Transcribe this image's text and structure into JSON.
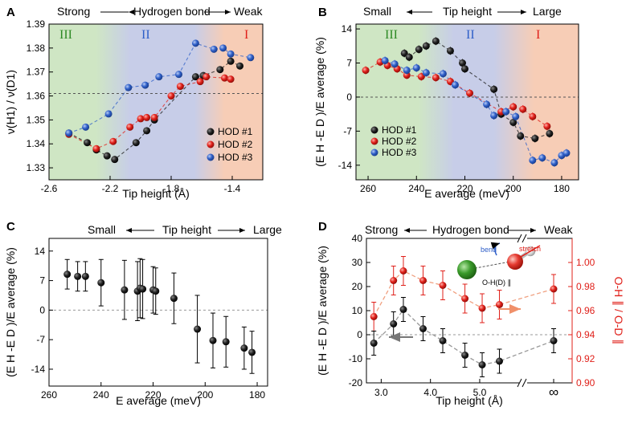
{
  "colors": {
    "black": "#1a1a1a",
    "red": "#e0201a",
    "blue": "#2f5fc8",
    "green_region": "#cfe6c4",
    "blue_region": "#c7cde8",
    "orange_region": "#f7cdb6",
    "right_axis": "#e0201a"
  },
  "chart_data": [
    {
      "panel": "A",
      "type": "scatter",
      "top_scale": {
        "left": "Strong",
        "middle": "Hydrogen bond",
        "right": "Weak"
      },
      "regions": [
        "III",
        "II",
        "I"
      ],
      "xlabel": "Tip height (Å)",
      "ylabel": "ν(H1) / ν(D1)",
      "xlim": [
        -2.6,
        -1.2
      ],
      "ylim": [
        1.325,
        1.39
      ],
      "xticks": [
        "-2.6",
        "-2.2",
        "-1.8",
        "-1.4"
      ],
      "xtick_values": [
        -2.6,
        -2.2,
        -1.8,
        -1.4
      ],
      "yticks": [
        "1.33",
        "1.34",
        "1.35",
        "1.36",
        "1.37",
        "1.38",
        "1.39"
      ],
      "ytick_values": [
        1.33,
        1.34,
        1.35,
        1.36,
        1.37,
        1.38,
        1.39
      ],
      "reference_line": 1.361,
      "legend": [
        "HOD #1",
        "HOD #2",
        "HOD #3"
      ],
      "series": [
        {
          "name": "HOD #1",
          "x": [
            -2.47,
            -2.35,
            -2.29,
            -2.22,
            -2.17,
            -2.03,
            -1.96,
            -1.91,
            -1.64,
            -1.59,
            -1.48,
            -1.41,
            -1.35
          ],
          "y": [
            1.3445,
            1.3405,
            1.3375,
            1.335,
            1.3335,
            1.3405,
            1.3455,
            1.35,
            1.368,
            1.3685,
            1.371,
            1.3745,
            1.3725
          ]
        },
        {
          "name": "HOD #2",
          "x": [
            -2.47,
            -2.29,
            -2.18,
            -2.07,
            -2.0,
            -1.96,
            -1.91,
            -1.8,
            -1.74,
            -1.61,
            -1.57,
            -1.45,
            -1.41
          ],
          "y": [
            1.344,
            1.338,
            1.341,
            1.347,
            1.3505,
            1.351,
            1.351,
            1.36,
            1.364,
            1.366,
            1.368,
            1.3675,
            1.367
          ]
        },
        {
          "name": "HOD #3",
          "x": [
            -2.47,
            -2.36,
            -2.21,
            -2.08,
            -1.97,
            -1.88,
            -1.75,
            -1.64,
            -1.52,
            -1.46,
            -1.41,
            -1.28
          ],
          "y": [
            1.3445,
            1.347,
            1.3525,
            1.3635,
            1.3645,
            1.368,
            1.369,
            1.382,
            1.3795,
            1.38,
            1.3775,
            1.376
          ]
        }
      ]
    },
    {
      "panel": "B",
      "type": "scatter",
      "top_scale": {
        "left": "Small",
        "middle": "Tip height",
        "right": "Large"
      },
      "regions": [
        "III",
        "II",
        "I"
      ],
      "xlabel": "E average (meV)",
      "ylabel": "(E H -E D )/E average (%)",
      "xlim": [
        265,
        173
      ],
      "ylim": [
        -17,
        15
      ],
      "xticks": [
        "260",
        "240",
        "220",
        "200",
        "180"
      ],
      "xtick_values": [
        260,
        240,
        220,
        200,
        180
      ],
      "yticks": [
        "14",
        "7",
        "0",
        "-7",
        "-14"
      ],
      "ytick_values": [
        14,
        7,
        0,
        -7,
        -14
      ],
      "reference_line": 0,
      "legend": [
        "HOD #1",
        "HOD #2",
        "HOD #3"
      ],
      "series": [
        {
          "name": "HOD #1",
          "x": [
            245,
            243,
            239,
            236,
            232,
            226,
            221,
            220,
            208,
            205,
            200,
            197,
            191,
            185
          ],
          "y": [
            9.0,
            8.2,
            9.8,
            10.5,
            11.5,
            9.5,
            7.0,
            5.8,
            1.6,
            -3.5,
            -5.2,
            -8.0,
            -8.5,
            -7.5
          ]
        },
        {
          "name": "HOD #2",
          "x": [
            261,
            255,
            252,
            248,
            244,
            238,
            232,
            226,
            218,
            205,
            200,
            196,
            192,
            186
          ],
          "y": [
            5.5,
            7.2,
            6.5,
            5.8,
            4.5,
            4.2,
            4.0,
            3.2,
            0.8,
            -3.0,
            -2.0,
            -2.5,
            -4.0,
            -6.0
          ]
        },
        {
          "name": "HOD #3",
          "x": [
            253,
            249,
            244,
            240,
            236,
            229,
            224,
            211,
            208,
            203,
            199,
            192,
            188,
            183,
            180,
            178
          ],
          "y": [
            7.5,
            6.8,
            5.5,
            6.0,
            5.0,
            4.8,
            2.5,
            -1.5,
            -3.8,
            -3.0,
            -4.0,
            -13.0,
            -12.5,
            -13.5,
            -12.0,
            -11.5
          ]
        }
      ]
    },
    {
      "panel": "C",
      "type": "scatter",
      "top_scale": {
        "left": "Small",
        "middle": "Tip height",
        "right": "Large"
      },
      "xlabel": "E average (meV)",
      "ylabel": "(E H -E D )/E average (%)",
      "xlim": [
        260,
        176
      ],
      "ylim": [
        -18,
        17
      ],
      "xticks": [
        "260",
        "240",
        "220",
        "200",
        "180"
      ],
      "xtick_values": [
        260,
        240,
        220,
        200,
        180
      ],
      "yticks": [
        "14",
        "7",
        "0",
        "-7",
        "-14"
      ],
      "ytick_values": [
        14,
        7,
        0,
        -7,
        -14
      ],
      "reference_line": 0,
      "series": [
        {
          "name": "",
          "x": [
            253,
            249,
            246,
            240,
            231,
            226,
            225,
            224,
            220,
            219,
            212,
            203,
            197,
            192,
            185,
            182
          ],
          "y": [
            8.5,
            8.0,
            8.0,
            6.5,
            4.8,
            4.5,
            5.2,
            5.0,
            4.8,
            4.5,
            2.8,
            -4.5,
            -7.2,
            -7.5,
            -9.0,
            -10.0
          ],
          "err": [
            3.5,
            3.5,
            3.5,
            5.5,
            7.0,
            7.0,
            7.0,
            7.0,
            5.5,
            5.5,
            6.0,
            8.0,
            6.5,
            6.0,
            5.0,
            5.0
          ]
        }
      ]
    },
    {
      "panel": "D",
      "type": "line",
      "top_scale": {
        "left": "Strong",
        "middle": "Hydrogen bond",
        "right": "Weak"
      },
      "xlabel": "Tip height (Å)",
      "ylabel_left": "(E H -E D )/E average (%)",
      "ylabel_right": "O-H ∥ / O-D ∥",
      "xticks": [
        "3.0",
        "4.0",
        "5.0",
        "∞"
      ],
      "yticks_left": [
        "-20",
        "-10",
        "0",
        "10",
        "20",
        "30",
        "40"
      ],
      "yticks_left_values": [
        -20,
        -10,
        0,
        10,
        20,
        30,
        40
      ],
      "yticks_right": [
        "0.90",
        "0.92",
        "0.94",
        "0.96",
        "0.98",
        "1.00"
      ],
      "yticks_right_values": [
        0.9,
        0.92,
        0.94,
        0.96,
        0.98,
        1.0
      ],
      "ylim_left": [
        -20,
        40
      ],
      "ylim_right": [
        0.9,
        1.02
      ],
      "reference_line": 0,
      "inset_labels": {
        "bend": "bend",
        "stretch": "stretch",
        "bond": "O-H(D) ∥"
      },
      "series": [
        {
          "name": "",
          "axis": "left",
          "x": [
            "2.85",
            "3.25",
            "3.45",
            "3.85",
            "4.25",
            "4.7",
            "5.05",
            "5.4",
            "∞"
          ],
          "y": [
            -3.5,
            4.5,
            10.5,
            2.5,
            -2.5,
            -8.5,
            -12.5,
            -11.0,
            -2.5
          ],
          "err": [
            5.0,
            5.0,
            5.0,
            5.0,
            5.0,
            5.0,
            5.0,
            5.0,
            5.0
          ]
        },
        {
          "name": "",
          "axis": "right",
          "x": [
            "2.85",
            "3.25",
            "3.45",
            "3.85",
            "4.25",
            "4.7",
            "5.05",
            "5.4",
            "∞"
          ],
          "y": [
            0.955,
            0.985,
            0.993,
            0.985,
            0.981,
            0.97,
            0.962,
            0.965,
            0.978
          ],
          "err": [
            0.012,
            0.012,
            0.012,
            0.012,
            0.012,
            0.012,
            0.012,
            0.012,
            0.012
          ]
        }
      ]
    }
  ]
}
